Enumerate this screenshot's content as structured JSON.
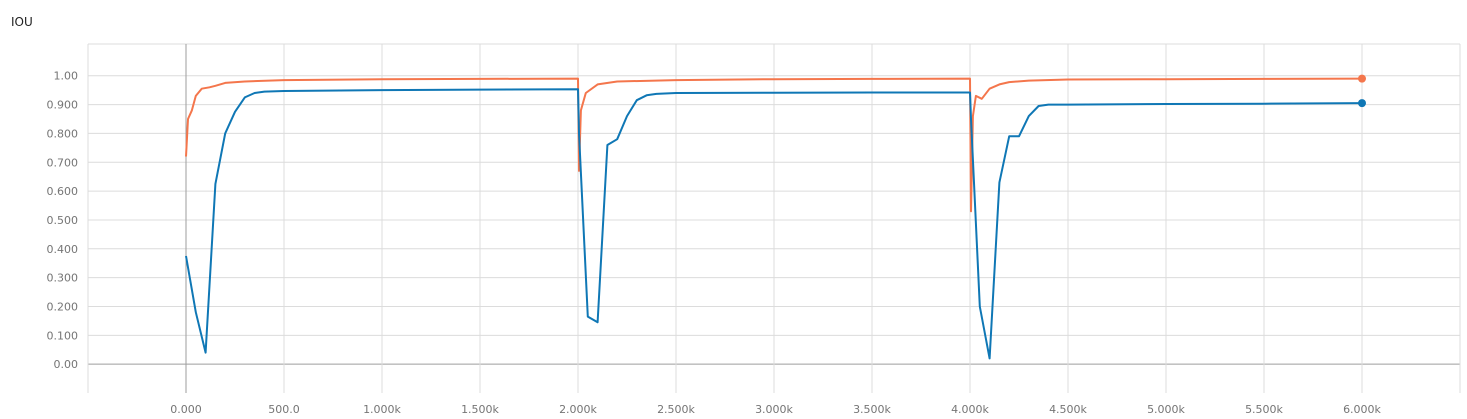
{
  "chart_data": {
    "type": "line",
    "title": "IOU",
    "xlabel": "",
    "ylabel": "",
    "xlim": [
      -500,
      6500
    ],
    "ylim": [
      -0.1,
      1.11
    ],
    "grid": true,
    "legend": "none",
    "yticks": [
      0.0,
      0.1,
      0.2,
      0.3,
      0.4,
      0.5,
      0.6,
      0.7,
      0.8,
      0.9,
      1.0
    ],
    "ytick_labels": [
      "0.00",
      "0.100",
      "0.200",
      "0.300",
      "0.400",
      "0.500",
      "0.600",
      "0.700",
      "0.800",
      "0.900",
      "1.00"
    ],
    "xticks": [
      0,
      500,
      1000,
      1500,
      2000,
      2500,
      3000,
      3500,
      4000,
      4500,
      5000,
      5500,
      6000
    ],
    "xtick_labels": [
      "0.000",
      "500.0",
      "1.000k",
      "1.500k",
      "2.000k",
      "2.500k",
      "3.000k",
      "3.500k",
      "4.000k",
      "4.500k",
      "5.000k",
      "5.500k",
      "6.000k"
    ],
    "series": [
      {
        "color": "#f4764c",
        "x": [
          0,
          10,
          30,
          50,
          80,
          120,
          150,
          200,
          300,
          500,
          1000,
          1500,
          2000,
          2005,
          2015,
          2040,
          2100,
          2200,
          2500,
          3000,
          3500,
          4000,
          4005,
          4015,
          4030,
          4060,
          4100,
          4150,
          4200,
          4300,
          4500,
          5000,
          5500,
          6000
        ],
        "y": [
          0.72,
          0.85,
          0.88,
          0.93,
          0.955,
          0.96,
          0.965,
          0.975,
          0.98,
          0.985,
          0.988,
          0.989,
          0.99,
          0.67,
          0.88,
          0.94,
          0.97,
          0.98,
          0.985,
          0.988,
          0.989,
          0.99,
          0.53,
          0.86,
          0.93,
          0.92,
          0.955,
          0.97,
          0.978,
          0.983,
          0.987,
          0.988,
          0.989,
          0.99
        ]
      },
      {
        "color": "#0f77b5",
        "x": [
          0,
          50,
          100,
          150,
          200,
          250,
          300,
          350,
          400,
          500,
          1000,
          1500,
          2000,
          2005,
          2050,
          2100,
          2150,
          2200,
          2250,
          2300,
          2350,
          2400,
          2500,
          3000,
          3500,
          4000,
          4005,
          4050,
          4100,
          4150,
          4200,
          4250,
          4300,
          4350,
          4400,
          4500,
          5000,
          5500,
          6000
        ],
        "y": [
          0.375,
          0.18,
          0.04,
          0.625,
          0.8,
          0.875,
          0.925,
          0.94,
          0.945,
          0.947,
          0.95,
          0.952,
          0.953,
          0.8,
          0.165,
          0.145,
          0.76,
          0.78,
          0.86,
          0.915,
          0.932,
          0.937,
          0.94,
          0.941,
          0.942,
          0.942,
          0.85,
          0.2,
          0.02,
          0.63,
          0.79,
          0.79,
          0.86,
          0.895,
          0.9,
          0.9,
          0.902,
          0.903,
          0.905
        ]
      }
    ]
  }
}
